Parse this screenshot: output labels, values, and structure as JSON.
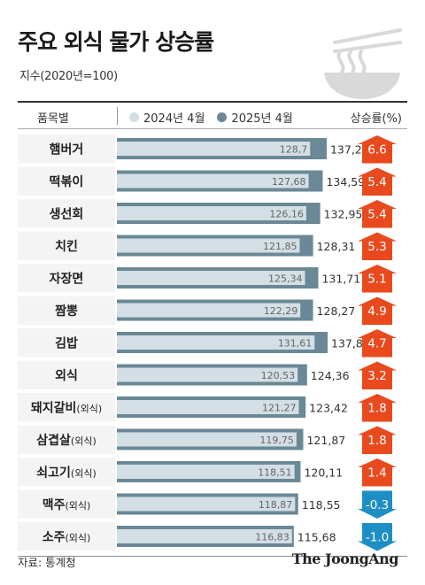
{
  "title": "주요 외식 물가 상승률",
  "subtitle": "지수(2020년=100)",
  "header": {
    "category_label": "품목별",
    "rate_label": "상승률(%)"
  },
  "source": "자료: 통계청",
  "brand": "The JoongAng",
  "colors": {
    "series_2024": "#d3dfe5",
    "series_2025": "#6a8896",
    "increase": "#e84a1e",
    "decrease": "#1e8fc4",
    "row_bg": "#f4f4f4"
  },
  "chart_data": {
    "type": "bar",
    "orientation": "horizontal",
    "categories": [
      {
        "name": "햄버거",
        "suffix": ""
      },
      {
        "name": "떡볶이",
        "suffix": ""
      },
      {
        "name": "생선회",
        "suffix": ""
      },
      {
        "name": "치킨",
        "suffix": ""
      },
      {
        "name": "자장면",
        "suffix": ""
      },
      {
        "name": "짬뽕",
        "suffix": ""
      },
      {
        "name": "김밥",
        "suffix": ""
      },
      {
        "name": "외식",
        "suffix": ""
      },
      {
        "name": "돼지갈비",
        "suffix": "(외식)"
      },
      {
        "name": "삼겹살",
        "suffix": "(외식)"
      },
      {
        "name": "쇠고기",
        "suffix": "(외식)"
      },
      {
        "name": "맥주",
        "suffix": "(외식)"
      },
      {
        "name": "소주",
        "suffix": "(외식)"
      }
    ],
    "series": [
      {
        "name": "2024년 4월",
        "values": [
          "128,7",
          "127,68",
          "126,16",
          "121,85",
          "125,34",
          "122,29",
          "131,61",
          "120,53",
          "121,27",
          "119,75",
          "118,51",
          "118,87",
          "116,83"
        ]
      },
      {
        "name": "2025년 4월",
        "values": [
          "137,2",
          "134,59",
          "132,95",
          "128,31",
          "131,71",
          "128,27",
          "137,8",
          "124,36",
          "123,42",
          "121,87",
          "120,11",
          "118,55",
          "115,68"
        ]
      }
    ],
    "rates": [
      "6.6",
      "5.4",
      "5.4",
      "5.3",
      "5.1",
      "4.9",
      "4.7",
      "3.2",
      "1.8",
      "1.8",
      "1.4",
      "-0.3",
      "-1.0"
    ],
    "xlim": [
      0,
      140
    ]
  }
}
